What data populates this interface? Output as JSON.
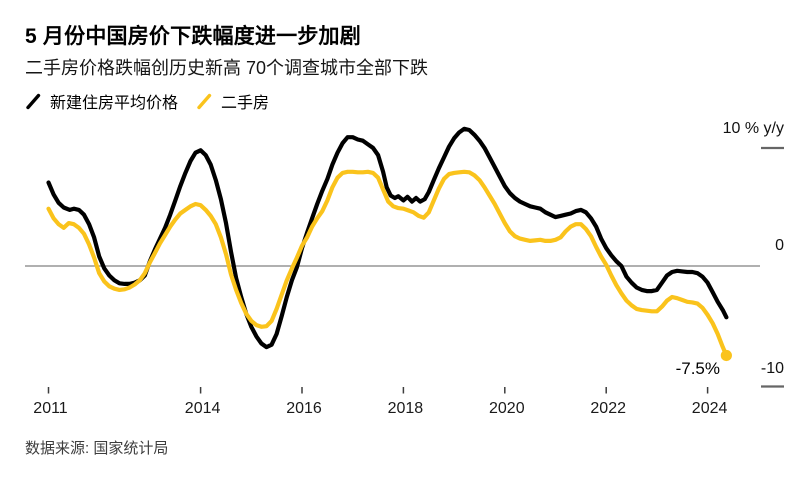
{
  "header": {
    "title": "5 月份中国房价下跌幅度进一步加剧",
    "subtitle": "二手房价格跌幅创历史新高 70个调查城市全部下跌"
  },
  "legend": {
    "items": [
      {
        "label": "新建住房平均价格",
        "color": "#000000"
      },
      {
        "label": "二手房",
        "color": "#FAC31C"
      }
    ]
  },
  "axis": {
    "y_top": "10 % y/y",
    "y_zero": "0",
    "y_bottom": "-10"
  },
  "annotation": "-7.5%",
  "source": "数据来源: 国家统计局",
  "chart_data": {
    "type": "line",
    "title": "5 月份中国房价下跌幅度进一步加剧",
    "subtitle": "二手房价格跌幅创历史新高 70个调查城市全部下跌",
    "unit": "% y/y",
    "ylim": [
      -10,
      12
    ],
    "y_ticks": [
      10,
      0,
      -10
    ],
    "x_ticks": [
      2011,
      2014,
      2016,
      2018,
      2020,
      2022,
      2024
    ],
    "grid": false,
    "legend_position": "top-left",
    "end_label": "-7.5%",
    "series": [
      {
        "name": "新建住房平均价格",
        "color": "#000000",
        "end_dot": false,
        "points": [
          [
            2011.0,
            7.0
          ],
          [
            2011.1,
            6.0
          ],
          [
            2011.2,
            5.3
          ],
          [
            2011.3,
            4.9
          ],
          [
            2011.42,
            4.7
          ],
          [
            2011.5,
            4.8
          ],
          [
            2011.6,
            4.7
          ],
          [
            2011.7,
            4.3
          ],
          [
            2011.8,
            3.5
          ],
          [
            2011.9,
            2.4
          ],
          [
            2012.0,
            0.8
          ],
          [
            2012.1,
            -0.2
          ],
          [
            2012.2,
            -0.8
          ],
          [
            2012.3,
            -1.2
          ],
          [
            2012.4,
            -1.45
          ],
          [
            2012.5,
            -1.5
          ],
          [
            2012.6,
            -1.5
          ],
          [
            2012.7,
            -1.4
          ],
          [
            2012.8,
            -1.2
          ],
          [
            2012.9,
            -0.8
          ],
          [
            2013.0,
            0.4
          ],
          [
            2013.1,
            1.4
          ],
          [
            2013.2,
            2.3
          ],
          [
            2013.3,
            3.2
          ],
          [
            2013.4,
            4.3
          ],
          [
            2013.5,
            5.5
          ],
          [
            2013.6,
            6.7
          ],
          [
            2013.7,
            7.8
          ],
          [
            2013.8,
            8.8
          ],
          [
            2013.9,
            9.5
          ],
          [
            2014.0,
            9.7
          ],
          [
            2014.1,
            9.3
          ],
          [
            2014.2,
            8.5
          ],
          [
            2014.3,
            7.2
          ],
          [
            2014.4,
            5.6
          ],
          [
            2014.5,
            3.6
          ],
          [
            2014.6,
            1.2
          ],
          [
            2014.7,
            -1.0
          ],
          [
            2014.8,
            -2.6
          ],
          [
            2014.9,
            -4.0
          ],
          [
            2015.0,
            -5.1
          ],
          [
            2015.1,
            -5.9
          ],
          [
            2015.2,
            -6.5
          ],
          [
            2015.3,
            -6.8
          ],
          [
            2015.4,
            -6.6
          ],
          [
            2015.5,
            -5.7
          ],
          [
            2015.6,
            -4.2
          ],
          [
            2015.7,
            -2.6
          ],
          [
            2015.8,
            -1.2
          ],
          [
            2015.9,
            -0.1
          ],
          [
            2016.0,
            1.5
          ],
          [
            2016.1,
            2.8
          ],
          [
            2016.2,
            4.0
          ],
          [
            2016.3,
            5.2
          ],
          [
            2016.4,
            6.3
          ],
          [
            2016.5,
            7.3
          ],
          [
            2016.6,
            8.5
          ],
          [
            2016.7,
            9.5
          ],
          [
            2016.8,
            10.3
          ],
          [
            2016.9,
            10.8
          ],
          [
            2017.0,
            10.8
          ],
          [
            2017.1,
            10.6
          ],
          [
            2017.2,
            10.5
          ],
          [
            2017.3,
            10.2
          ],
          [
            2017.4,
            9.9
          ],
          [
            2017.5,
            9.3
          ],
          [
            2017.6,
            7.9
          ],
          [
            2017.67,
            6.6
          ],
          [
            2017.75,
            5.9
          ],
          [
            2017.83,
            5.7
          ],
          [
            2017.9,
            5.85
          ],
          [
            2018.0,
            5.5
          ],
          [
            2018.08,
            5.8
          ],
          [
            2018.17,
            5.4
          ],
          [
            2018.25,
            5.7
          ],
          [
            2018.33,
            5.4
          ],
          [
            2018.42,
            5.6
          ],
          [
            2018.5,
            6.2
          ],
          [
            2018.6,
            7.2
          ],
          [
            2018.7,
            8.2
          ],
          [
            2018.8,
            9.1
          ],
          [
            2018.9,
            10.0
          ],
          [
            2019.0,
            10.7
          ],
          [
            2019.1,
            11.2
          ],
          [
            2019.2,
            11.5
          ],
          [
            2019.3,
            11.4
          ],
          [
            2019.4,
            11.0
          ],
          [
            2019.5,
            10.5
          ],
          [
            2019.6,
            9.9
          ],
          [
            2019.7,
            9.1
          ],
          [
            2019.8,
            8.3
          ],
          [
            2019.9,
            7.5
          ],
          [
            2020.0,
            6.7
          ],
          [
            2020.1,
            6.1
          ],
          [
            2020.2,
            5.7
          ],
          [
            2020.3,
            5.4
          ],
          [
            2020.4,
            5.2
          ],
          [
            2020.5,
            5.0
          ],
          [
            2020.6,
            4.9
          ],
          [
            2020.7,
            4.8
          ],
          [
            2020.8,
            4.5
          ],
          [
            2020.9,
            4.3
          ],
          [
            2021.0,
            4.1
          ],
          [
            2021.1,
            4.2
          ],
          [
            2021.2,
            4.3
          ],
          [
            2021.3,
            4.4
          ],
          [
            2021.4,
            4.6
          ],
          [
            2021.5,
            4.7
          ],
          [
            2021.6,
            4.5
          ],
          [
            2021.7,
            4.0
          ],
          [
            2021.8,
            3.3
          ],
          [
            2021.9,
            2.3
          ],
          [
            2022.0,
            1.5
          ],
          [
            2022.1,
            0.9
          ],
          [
            2022.2,
            0.4
          ],
          [
            2022.3,
            0.0
          ],
          [
            2022.4,
            -0.9
          ],
          [
            2022.5,
            -1.4
          ],
          [
            2022.6,
            -1.8
          ],
          [
            2022.7,
            -2.0
          ],
          [
            2022.8,
            -2.1
          ],
          [
            2022.9,
            -2.1
          ],
          [
            2023.0,
            -2.0
          ],
          [
            2023.1,
            -1.4
          ],
          [
            2023.2,
            -0.8
          ],
          [
            2023.3,
            -0.5
          ],
          [
            2023.4,
            -0.4
          ],
          [
            2023.5,
            -0.45
          ],
          [
            2023.6,
            -0.5
          ],
          [
            2023.7,
            -0.5
          ],
          [
            2023.8,
            -0.6
          ],
          [
            2023.9,
            -0.9
          ],
          [
            2024.0,
            -1.4
          ],
          [
            2024.1,
            -2.2
          ],
          [
            2024.2,
            -3.0
          ],
          [
            2024.3,
            -3.7
          ],
          [
            2024.37,
            -4.3
          ]
        ]
      },
      {
        "name": "二手房",
        "color": "#FAC31C",
        "end_dot": true,
        "points": [
          [
            2011.0,
            4.8
          ],
          [
            2011.1,
            4.0
          ],
          [
            2011.2,
            3.5
          ],
          [
            2011.3,
            3.2
          ],
          [
            2011.4,
            3.6
          ],
          [
            2011.5,
            3.5
          ],
          [
            2011.6,
            3.2
          ],
          [
            2011.7,
            2.7
          ],
          [
            2011.8,
            1.8
          ],
          [
            2011.9,
            0.7
          ],
          [
            2012.0,
            -0.6
          ],
          [
            2012.1,
            -1.3
          ],
          [
            2012.2,
            -1.7
          ],
          [
            2012.3,
            -1.9
          ],
          [
            2012.4,
            -2.0
          ],
          [
            2012.5,
            -1.95
          ],
          [
            2012.6,
            -1.8
          ],
          [
            2012.7,
            -1.55
          ],
          [
            2012.8,
            -1.2
          ],
          [
            2012.9,
            -0.6
          ],
          [
            2013.0,
            0.3
          ],
          [
            2013.1,
            1.1
          ],
          [
            2013.2,
            1.9
          ],
          [
            2013.3,
            2.6
          ],
          [
            2013.4,
            3.3
          ],
          [
            2013.5,
            3.9
          ],
          [
            2013.6,
            4.4
          ],
          [
            2013.7,
            4.7
          ],
          [
            2013.8,
            5.0
          ],
          [
            2013.9,
            5.2
          ],
          [
            2014.0,
            5.1
          ],
          [
            2014.1,
            4.7
          ],
          [
            2014.2,
            4.2
          ],
          [
            2014.3,
            3.5
          ],
          [
            2014.4,
            2.4
          ],
          [
            2014.5,
            1.0
          ],
          [
            2014.6,
            -0.7
          ],
          [
            2014.7,
            -2.0
          ],
          [
            2014.8,
            -3.1
          ],
          [
            2014.9,
            -4.0
          ],
          [
            2015.0,
            -4.6
          ],
          [
            2015.1,
            -4.95
          ],
          [
            2015.2,
            -5.1
          ],
          [
            2015.3,
            -5.05
          ],
          [
            2015.4,
            -4.6
          ],
          [
            2015.5,
            -3.6
          ],
          [
            2015.6,
            -2.4
          ],
          [
            2015.7,
            -1.2
          ],
          [
            2015.8,
            -0.2
          ],
          [
            2015.9,
            0.7
          ],
          [
            2016.0,
            1.7
          ],
          [
            2016.1,
            2.4
          ],
          [
            2016.2,
            3.3
          ],
          [
            2016.3,
            4.0
          ],
          [
            2016.4,
            4.6
          ],
          [
            2016.5,
            5.5
          ],
          [
            2016.6,
            6.6
          ],
          [
            2016.7,
            7.4
          ],
          [
            2016.8,
            7.8
          ],
          [
            2016.9,
            7.9
          ],
          [
            2017.0,
            7.9
          ],
          [
            2017.1,
            7.85
          ],
          [
            2017.2,
            7.85
          ],
          [
            2017.3,
            7.9
          ],
          [
            2017.4,
            7.8
          ],
          [
            2017.5,
            7.4
          ],
          [
            2017.6,
            6.4
          ],
          [
            2017.7,
            5.4
          ],
          [
            2017.8,
            5.0
          ],
          [
            2017.9,
            4.85
          ],
          [
            2018.0,
            4.8
          ],
          [
            2018.1,
            4.65
          ],
          [
            2018.2,
            4.5
          ],
          [
            2018.3,
            4.2
          ],
          [
            2018.4,
            4.05
          ],
          [
            2018.5,
            4.5
          ],
          [
            2018.6,
            5.5
          ],
          [
            2018.7,
            6.5
          ],
          [
            2018.8,
            7.3
          ],
          [
            2018.9,
            7.7
          ],
          [
            2019.0,
            7.8
          ],
          [
            2019.1,
            7.85
          ],
          [
            2019.2,
            7.9
          ],
          [
            2019.3,
            7.85
          ],
          [
            2019.4,
            7.6
          ],
          [
            2019.5,
            7.2
          ],
          [
            2019.6,
            6.6
          ],
          [
            2019.7,
            5.9
          ],
          [
            2019.8,
            5.2
          ],
          [
            2019.9,
            4.4
          ],
          [
            2020.0,
            3.6
          ],
          [
            2020.1,
            2.9
          ],
          [
            2020.2,
            2.5
          ],
          [
            2020.3,
            2.3
          ],
          [
            2020.4,
            2.2
          ],
          [
            2020.5,
            2.1
          ],
          [
            2020.6,
            2.15
          ],
          [
            2020.7,
            2.2
          ],
          [
            2020.8,
            2.1
          ],
          [
            2020.9,
            2.1
          ],
          [
            2021.0,
            2.2
          ],
          [
            2021.1,
            2.4
          ],
          [
            2021.2,
            2.9
          ],
          [
            2021.3,
            3.3
          ],
          [
            2021.4,
            3.5
          ],
          [
            2021.5,
            3.5
          ],
          [
            2021.6,
            3.1
          ],
          [
            2021.7,
            2.5
          ],
          [
            2021.8,
            1.6
          ],
          [
            2021.9,
            0.8
          ],
          [
            2022.0,
            0.1
          ],
          [
            2022.1,
            -0.8
          ],
          [
            2022.2,
            -1.6
          ],
          [
            2022.3,
            -2.3
          ],
          [
            2022.4,
            -2.9
          ],
          [
            2022.5,
            -3.3
          ],
          [
            2022.6,
            -3.6
          ],
          [
            2022.7,
            -3.7
          ],
          [
            2022.8,
            -3.75
          ],
          [
            2022.9,
            -3.8
          ],
          [
            2023.0,
            -3.8
          ],
          [
            2023.1,
            -3.4
          ],
          [
            2023.2,
            -2.9
          ],
          [
            2023.3,
            -2.6
          ],
          [
            2023.4,
            -2.7
          ],
          [
            2023.5,
            -2.85
          ],
          [
            2023.6,
            -3.0
          ],
          [
            2023.7,
            -3.05
          ],
          [
            2023.8,
            -3.15
          ],
          [
            2023.9,
            -3.5
          ],
          [
            2024.0,
            -4.1
          ],
          [
            2024.1,
            -4.8
          ],
          [
            2024.2,
            -5.7
          ],
          [
            2024.3,
            -6.8
          ],
          [
            2024.37,
            -7.5
          ]
        ]
      }
    ]
  }
}
